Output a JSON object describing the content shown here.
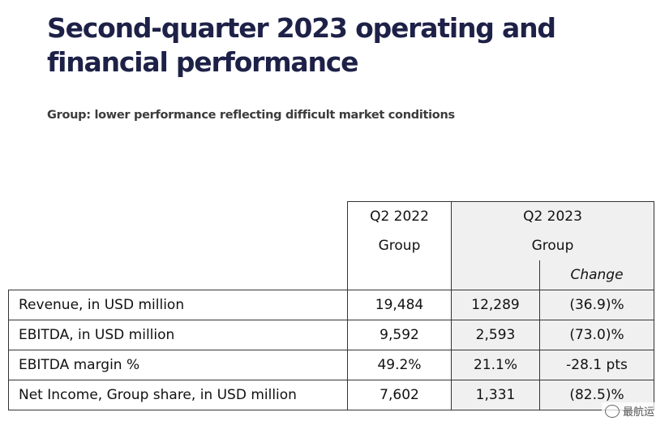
{
  "title": "Second-quarter 2023 operating and financial performance",
  "subtitle": "Group: lower performance reflecting difficult market conditions",
  "table": {
    "col_q2_2022": {
      "line1": "Q2 2022",
      "line2": "Group"
    },
    "col_q2_2023": {
      "line1": "Q2 2023",
      "line2": "Group"
    },
    "change_label": "Change",
    "rows": [
      {
        "label": "Revenue, in USD million",
        "q2_2022": "19,484",
        "q2_2023": "12,289",
        "change": "(36.9)%"
      },
      {
        "label": "EBITDA, in USD million",
        "q2_2022": "9,592",
        "q2_2023": "2,593",
        "change": "(73.0)%"
      },
      {
        "label": "EBITDA margin %",
        "q2_2022": "49.2%",
        "q2_2023": "21.1%",
        "change": "-28.1 pts"
      },
      {
        "label": "Net Income, Group share, in USD million",
        "q2_2022": "7,602",
        "q2_2023": "1,331",
        "change": "(82.5)%"
      }
    ]
  },
  "watermark": {
    "text": "最航运",
    "icon": "wechat-icon"
  }
}
